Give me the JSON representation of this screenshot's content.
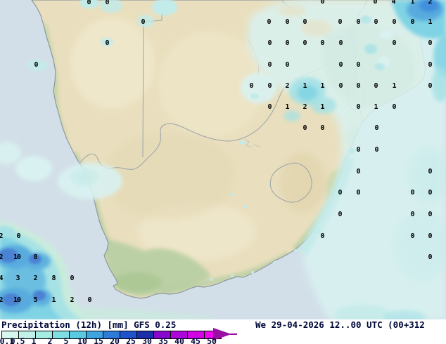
{
  "legend": {
    "title": "Precipitation (12h) [mm] GFS 0.25",
    "datetime": "We 29-04-2026 12..00 UTC (00+312",
    "unit_labels": [
      "0.1",
      "0.5",
      "1",
      "2",
      "5",
      "10",
      "15",
      "20",
      "25",
      "30",
      "35",
      "40",
      "45",
      "50"
    ],
    "colors": [
      "#d7f6ee",
      "#c2f1e9",
      "#a4ebe3",
      "#7fdee3",
      "#5ac9e2",
      "#3fa5e0",
      "#2f7cd8",
      "#1f53cc",
      "#1b2fa8",
      "#8708cc",
      "#ad06da",
      "#d204e4",
      "#ee04ee"
    ],
    "arrow_color": "#9a10a2",
    "text_color": "#000838"
  },
  "map": {
    "model": "GFS 0.25",
    "parameter": "Precipitation (12h)",
    "unit": "mm",
    "colors": {
      "ocean": "#d2dfe8",
      "land": "#e9dfbe",
      "coastline": "#8f989f",
      "border": "#9aa2aa",
      "green_coast": "#b7cfa0",
      "precip_pale": "#d9f2f1",
      "precip_light": "#c2ebe9",
      "precip_cyan": "#a3e1e6",
      "precip_mid": "#7fd3e4",
      "precip_blue": "#58abde",
      "precip_core": "#4b82d4",
      "mint": "#c9ecdc"
    },
    "values": [
      [
        126,
        4,
        "0"
      ],
      [
        152,
        4,
        "0"
      ],
      [
        458,
        3,
        "0"
      ],
      [
        533,
        3,
        "0"
      ],
      [
        559,
        3,
        "4"
      ],
      [
        586,
        3,
        "1"
      ],
      [
        611,
        3,
        "2"
      ],
      [
        203,
        32,
        "0"
      ],
      [
        382,
        32,
        "0"
      ],
      [
        408,
        32,
        "0"
      ],
      [
        433,
        32,
        "0"
      ],
      [
        483,
        32,
        "0"
      ],
      [
        509,
        32,
        "0"
      ],
      [
        534,
        32,
        "0"
      ],
      [
        560,
        32,
        "0"
      ],
      [
        586,
        32,
        "0"
      ],
      [
        611,
        32,
        "1"
      ],
      [
        152,
        62,
        "0"
      ],
      [
        383,
        62,
        "0"
      ],
      [
        408,
        62,
        "0"
      ],
      [
        433,
        62,
        "0"
      ],
      [
        458,
        62,
        "0"
      ],
      [
        484,
        62,
        "0"
      ],
      [
        560,
        62,
        "0"
      ],
      [
        611,
        62,
        "0"
      ],
      [
        51,
        93,
        "0"
      ],
      [
        383,
        93,
        "0"
      ],
      [
        408,
        93,
        "0"
      ],
      [
        484,
        93,
        "0"
      ],
      [
        509,
        93,
        "0"
      ],
      [
        611,
        93,
        "0"
      ],
      [
        357,
        123,
        "0"
      ],
      [
        383,
        123,
        "0"
      ],
      [
        408,
        123,
        "2"
      ],
      [
        433,
        123,
        "1"
      ],
      [
        458,
        123,
        "1"
      ],
      [
        484,
        123,
        "0"
      ],
      [
        509,
        123,
        "0"
      ],
      [
        534,
        123,
        "0"
      ],
      [
        560,
        123,
        "1"
      ],
      [
        611,
        123,
        "0"
      ],
      [
        383,
        153,
        "0"
      ],
      [
        408,
        153,
        "1"
      ],
      [
        433,
        153,
        "2"
      ],
      [
        458,
        153,
        "1"
      ],
      [
        509,
        153,
        "0"
      ],
      [
        534,
        153,
        "1"
      ],
      [
        560,
        153,
        "0"
      ],
      [
        433,
        183,
        "0"
      ],
      [
        458,
        183,
        "0"
      ],
      [
        535,
        183,
        "0"
      ],
      [
        509,
        214,
        "0"
      ],
      [
        535,
        214,
        "0"
      ],
      [
        509,
        245,
        "0"
      ],
      [
        611,
        245,
        "0"
      ],
      [
        483,
        275,
        "0"
      ],
      [
        509,
        275,
        "0"
      ],
      [
        586,
        275,
        "0"
      ],
      [
        611,
        275,
        "0"
      ],
      [
        483,
        306,
        "0"
      ],
      [
        586,
        306,
        "0"
      ],
      [
        611,
        306,
        "0"
      ],
      [
        1,
        337,
        "2"
      ],
      [
        26,
        337,
        "0"
      ],
      [
        458,
        337,
        "0"
      ],
      [
        586,
        337,
        "0"
      ],
      [
        611,
        337,
        "0"
      ],
      [
        1,
        367,
        "2"
      ],
      [
        24,
        367,
        "10"
      ],
      [
        50,
        367,
        "8"
      ],
      [
        611,
        367,
        "0"
      ],
      [
        1,
        397,
        "4"
      ],
      [
        25,
        397,
        "3"
      ],
      [
        50,
        397,
        "2"
      ],
      [
        76,
        397,
        "8"
      ],
      [
        102,
        397,
        "0"
      ],
      [
        1,
        428,
        "2"
      ],
      [
        24,
        428,
        "10"
      ],
      [
        50,
        428,
        "5"
      ],
      [
        76,
        428,
        "1"
      ],
      [
        102,
        428,
        "2"
      ],
      [
        127,
        428,
        "0"
      ]
    ]
  }
}
